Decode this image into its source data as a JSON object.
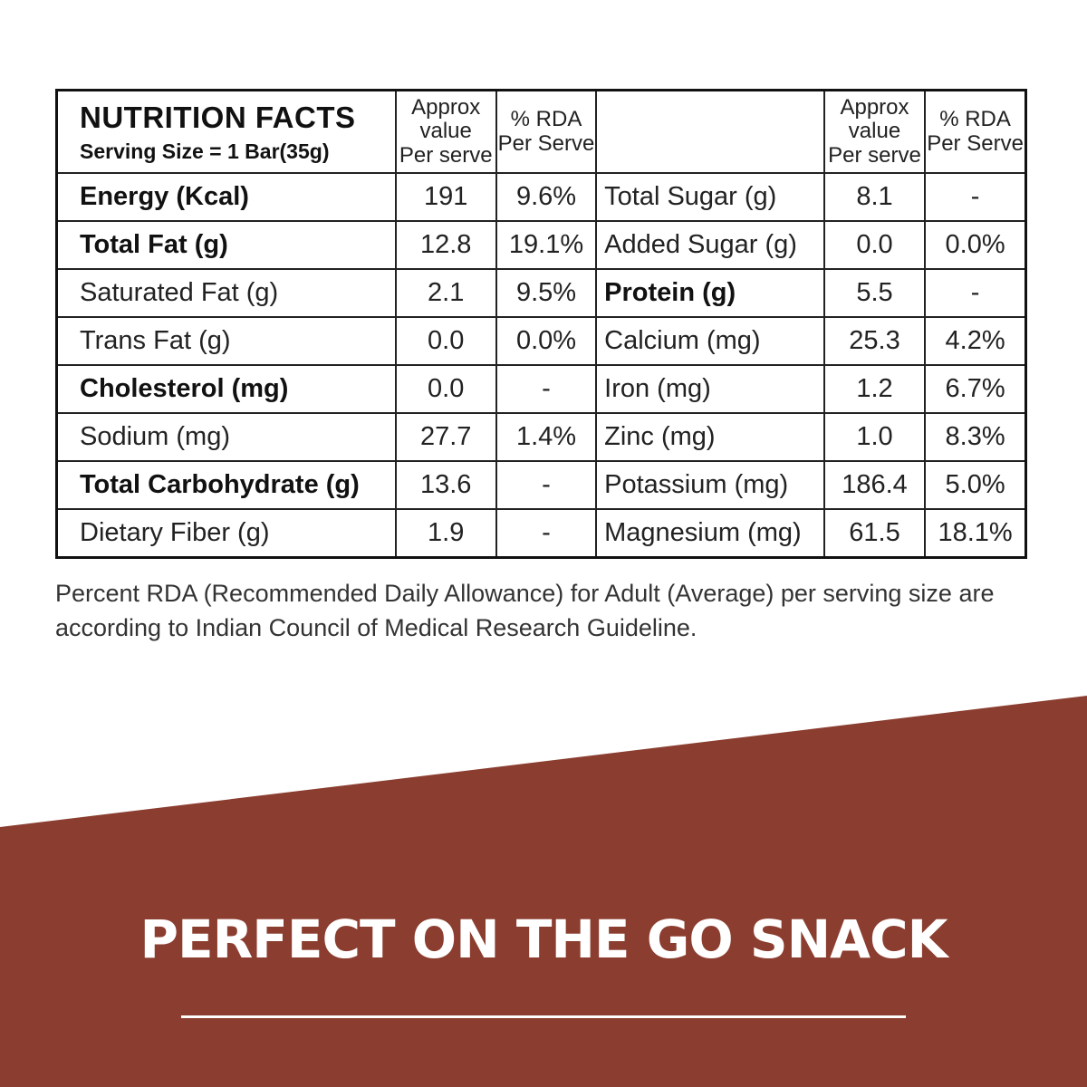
{
  "table": {
    "title": "NUTRITION FACTS",
    "serving_size": "Serving Size = 1 Bar(35g)",
    "headers": {
      "approx": [
        "Approx",
        "value",
        "Per serve"
      ],
      "rda": [
        "% RDA",
        "Per Serve"
      ]
    },
    "rows": [
      {
        "left_name": "Energy (Kcal)",
        "left_bold": true,
        "left_value": "191",
        "left_rda": "9.6%",
        "right_name": "Total Sugar (g)",
        "right_bold": false,
        "right_value": "8.1",
        "right_rda": "-"
      },
      {
        "left_name": "Total Fat (g)",
        "left_bold": true,
        "left_value": "12.8",
        "left_rda": "19.1%",
        "right_name": "Added Sugar (g)",
        "right_bold": false,
        "right_value": "0.0",
        "right_rda": "0.0%"
      },
      {
        "left_name": "Saturated Fat (g)",
        "left_bold": false,
        "left_value": "2.1",
        "left_rda": "9.5%",
        "right_name": "Protein (g)",
        "right_bold": true,
        "right_value": "5.5",
        "right_rda": "-"
      },
      {
        "left_name": "Trans Fat (g)",
        "left_bold": false,
        "left_value": "0.0",
        "left_rda": "0.0%",
        "right_name": "Calcium (mg)",
        "right_bold": false,
        "right_value": "25.3",
        "right_rda": "4.2%"
      },
      {
        "left_name": "Cholesterol (mg)",
        "left_bold": true,
        "left_value": "0.0",
        "left_rda": "-",
        "right_name": "Iron (mg)",
        "right_bold": false,
        "right_value": "1.2",
        "right_rda": "6.7%"
      },
      {
        "left_name": "Sodium (mg)",
        "left_bold": false,
        "left_value": "27.7",
        "left_rda": "1.4%",
        "right_name": "Zinc (mg)",
        "right_bold": false,
        "right_value": "1.0",
        "right_rda": "8.3%"
      },
      {
        "left_name": "Total Carbohydrate (g)",
        "left_bold": true,
        "left_value": "13.6",
        "left_rda": "-",
        "right_name": "Potassium (mg)",
        "right_bold": false,
        "right_value": "186.4",
        "right_rda": "5.0%"
      },
      {
        "left_name": "Dietary Fiber (g)",
        "left_bold": false,
        "left_value": "1.9",
        "left_rda": "-",
        "right_name": "Magnesium (mg)",
        "right_bold": false,
        "right_value": "61.5",
        "right_rda": "18.1%"
      }
    ]
  },
  "footnote": "Percent RDA (Recommended Daily Allowance) for Adult (Average) per serving size are according to Indian Council of Medical Research Guideline.",
  "banner": {
    "tagline": "PERFECT ON THE GO SNACK",
    "color": "#8b3d2f"
  }
}
